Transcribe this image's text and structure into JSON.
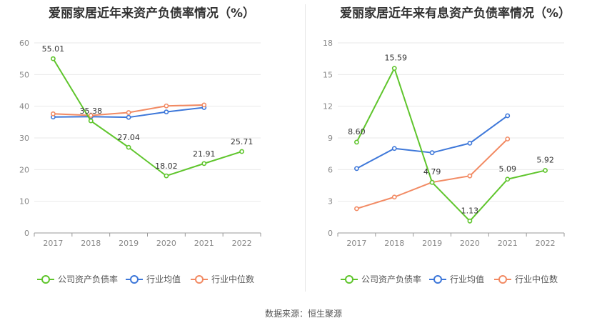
{
  "source_text": "数据来源：恒生聚源",
  "legend": [
    "公司资产负债率",
    "行业均值",
    "行业中位数"
  ],
  "colors": {
    "company": "#5fc52c",
    "mean": "#3d77d9",
    "median": "#f28a63",
    "grid": "#e9e9e9",
    "axis": "#999999"
  },
  "chart_data": [
    {
      "type": "line",
      "title": "爱丽家居近年来资产负债率情况（%）",
      "categories": [
        "2017",
        "2018",
        "2019",
        "2020",
        "2021",
        "2022"
      ],
      "ylim": [
        0,
        60
      ],
      "yticks": [
        0,
        10,
        20,
        30,
        40,
        50,
        60
      ],
      "grid": true,
      "legend_position": "bottom",
      "series": [
        {
          "name": "公司资产负债率",
          "values": [
            55.01,
            35.38,
            27.04,
            18.02,
            21.91,
            25.71
          ],
          "labels": [
            "55.01",
            "35.38",
            "27.04",
            "18.02",
            "21.91",
            "25.71"
          ]
        },
        {
          "name": "行业均值",
          "values": [
            36.6,
            36.7,
            36.5,
            38.2,
            39.6,
            null
          ]
        },
        {
          "name": "行业中位数",
          "values": [
            37.6,
            37.1,
            38.0,
            40.1,
            40.4,
            null
          ]
        }
      ]
    },
    {
      "type": "line",
      "title": "爱丽家居近年来有息资产负债率情况（%）",
      "categories": [
        "2017",
        "2018",
        "2019",
        "2020",
        "2021",
        "2022"
      ],
      "ylim": [
        0,
        18
      ],
      "yticks": [
        0,
        3,
        6,
        9,
        12,
        15,
        18
      ],
      "grid": true,
      "legend_position": "bottom",
      "series": [
        {
          "name": "公司资产负债率",
          "values": [
            8.6,
            15.59,
            4.79,
            1.13,
            5.09,
            5.92
          ],
          "labels": [
            "8.60",
            "15.59",
            "4.79",
            "1.13",
            "5.09",
            "5.92"
          ]
        },
        {
          "name": "行业均值",
          "values": [
            6.1,
            8.0,
            7.6,
            8.5,
            11.1,
            null
          ]
        },
        {
          "name": "行业中位数",
          "values": [
            2.3,
            3.4,
            4.8,
            5.4,
            8.9,
            null
          ]
        }
      ]
    }
  ]
}
